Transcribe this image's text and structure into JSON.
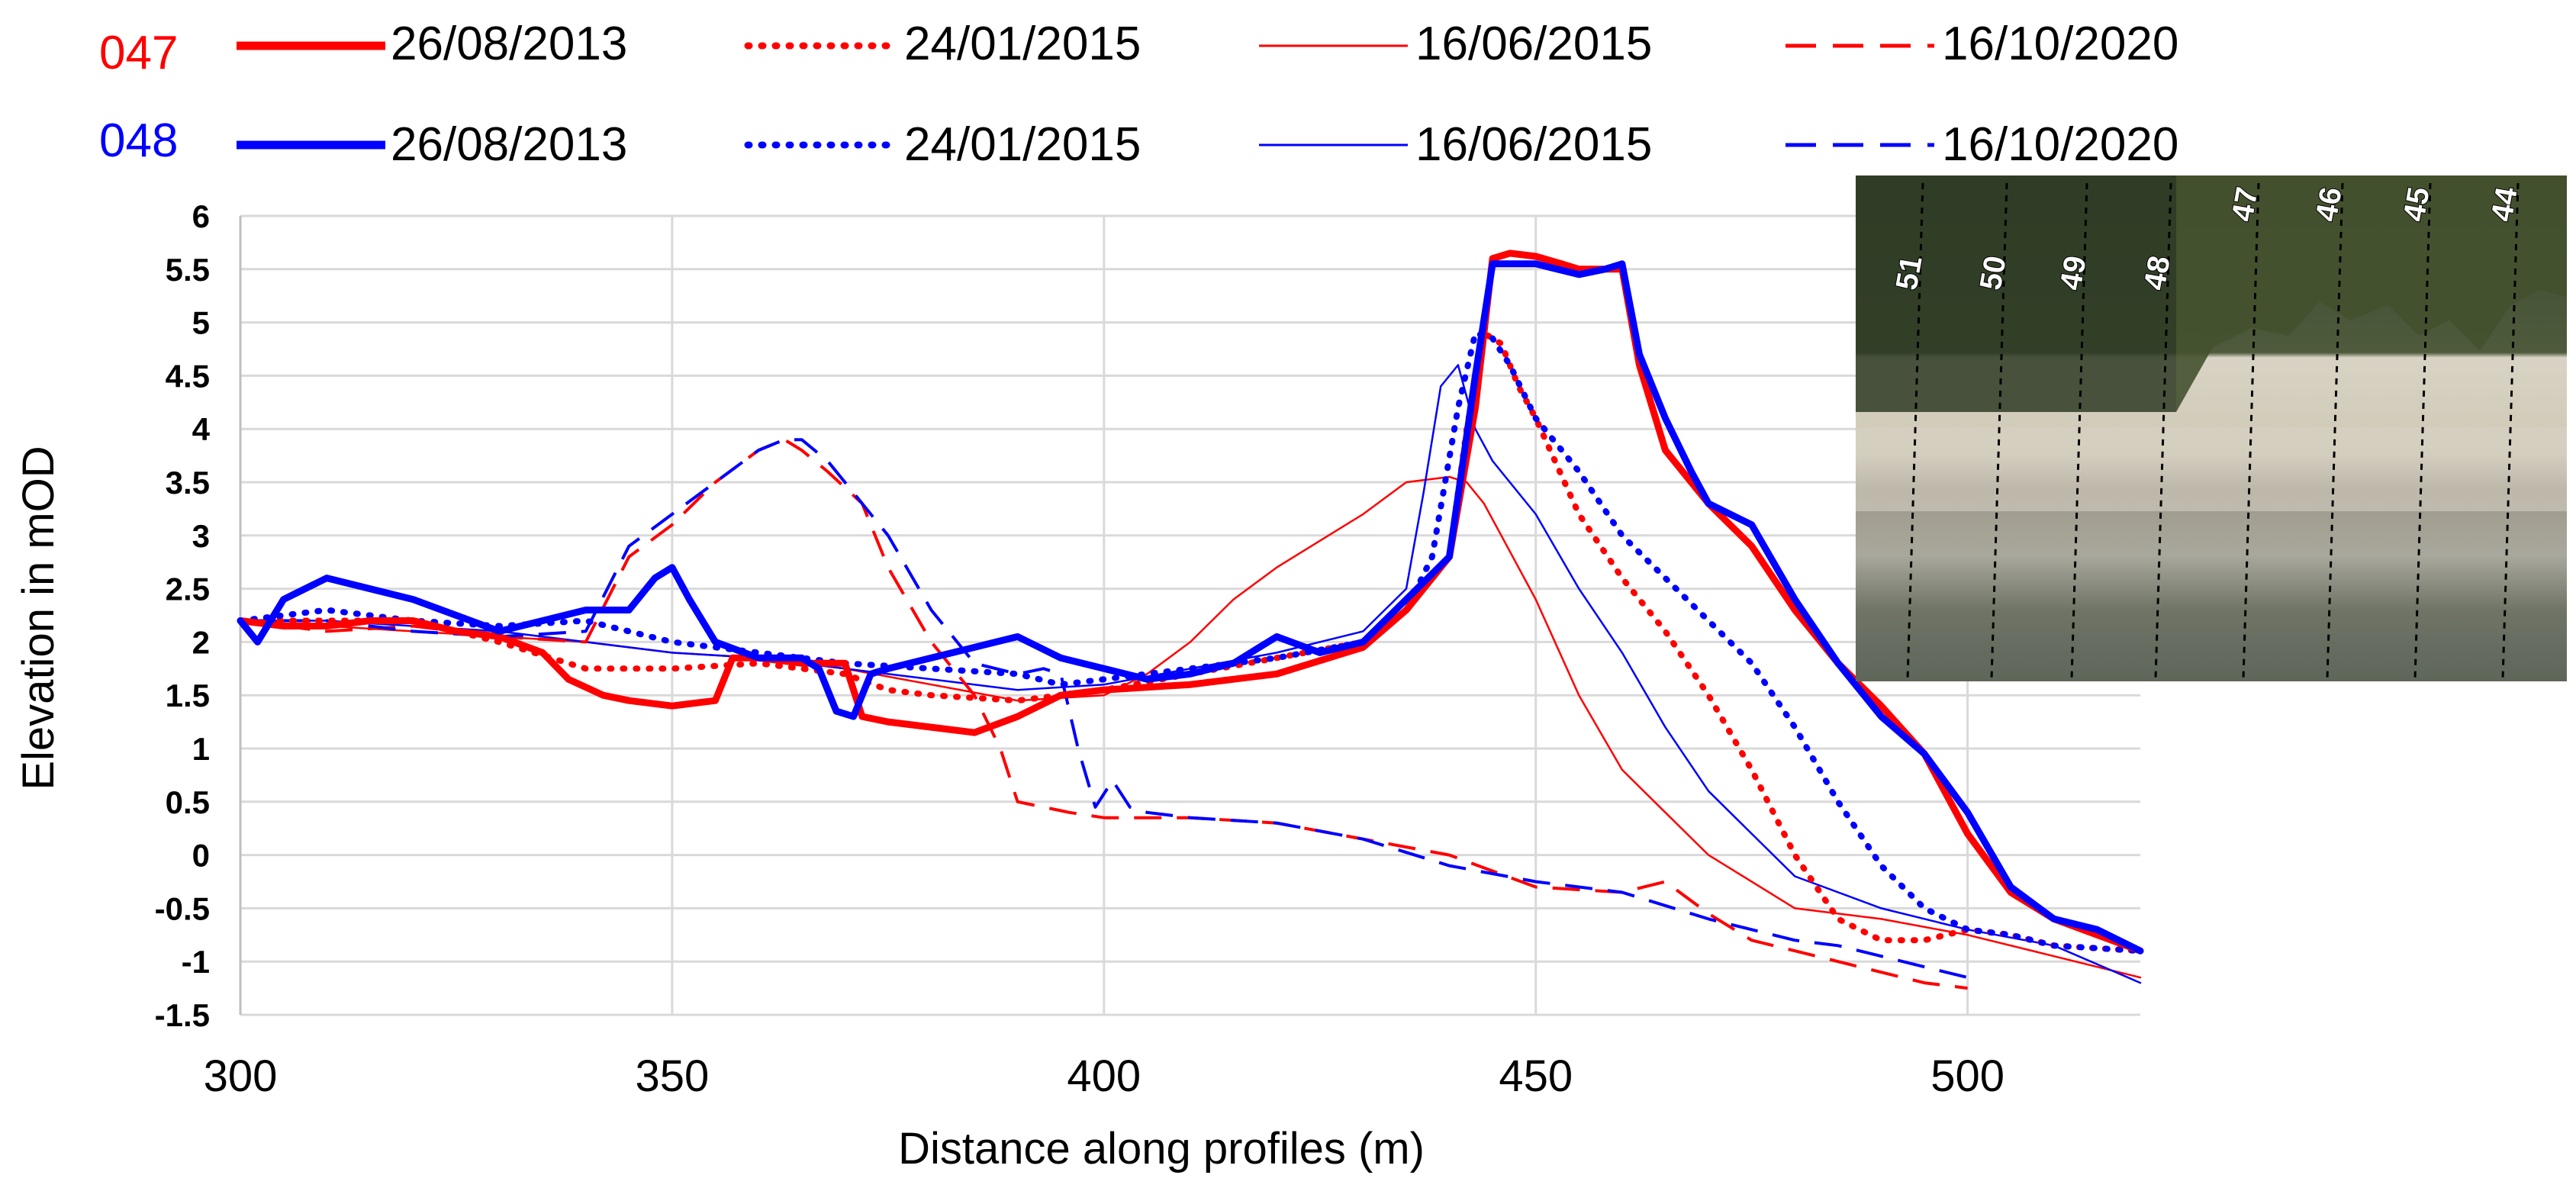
{
  "chart_data": {
    "type": "line",
    "title": "",
    "xlabel": "Distance along profiles (m)",
    "ylabel": "Elevation in mOD",
    "xlim": [
      300,
      520
    ],
    "ylim": [
      -1.5,
      6
    ],
    "x_ticks": [
      300,
      350,
      400,
      450,
      500
    ],
    "y_ticks": [
      6,
      5.5,
      5,
      4.5,
      4,
      3.5,
      3,
      2.5,
      2,
      1.5,
      1,
      0.5,
      0,
      -0.5,
      -1,
      -1.5
    ],
    "x_tick_labels": [
      "300",
      "350",
      "400",
      "450",
      "500"
    ],
    "y_tick_labels": [
      "6",
      "5.5",
      "5",
      "4.5",
      "4",
      "3.5",
      "3",
      "2.5",
      "2",
      "1.5",
      "1",
      "0.5",
      "0",
      "-0.5",
      "-1",
      "-1.5"
    ],
    "grid": true,
    "legend": {
      "position": "top",
      "groups": [
        {
          "label": "047",
          "color": "#ff0000"
        },
        {
          "label": "048",
          "color": "#0000ff"
        }
      ],
      "entries": [
        {
          "date": "26/08/2013",
          "style": "thick"
        },
        {
          "date": "24/01/2015",
          "style": "dotted"
        },
        {
          "date": "16/06/2015",
          "style": "thin"
        },
        {
          "date": "16/10/2020",
          "style": "dashed"
        }
      ]
    },
    "series": [
      {
        "name": "047 26/08/2013",
        "color": "#ff0000",
        "style": "thick",
        "x": [
          300,
          305,
          310,
          315,
          320,
          325,
          330,
          335,
          338,
          342,
          345,
          350,
          355,
          357,
          360,
          365,
          370,
          372,
          375,
          380,
          385,
          390,
          395,
          400,
          410,
          420,
          430,
          435,
          440,
          443,
          445,
          447,
          450,
          453,
          455,
          458,
          460,
          462,
          465,
          470,
          475,
          480,
          485,
          490,
          495,
          500,
          505,
          510,
          515,
          520
        ],
        "y": [
          2.2,
          2.15,
          2.15,
          2.2,
          2.2,
          2.1,
          2.05,
          1.9,
          1.65,
          1.5,
          1.45,
          1.4,
          1.45,
          1.85,
          1.85,
          1.8,
          1.8,
          1.3,
          1.25,
          1.2,
          1.15,
          1.3,
          1.5,
          1.55,
          1.6,
          1.7,
          1.95,
          2.3,
          2.8,
          4.2,
          5.6,
          5.65,
          5.62,
          5.55,
          5.5,
          5.5,
          5.5,
          4.6,
          3.8,
          3.3,
          2.9,
          2.3,
          1.8,
          1.4,
          0.95,
          0.2,
          -0.35,
          -0.6,
          -0.75,
          -0.9
        ]
      },
      {
        "name": "047 24/01/2015",
        "color": "#ff0000",
        "style": "dotted",
        "x": [
          300,
          310,
          320,
          330,
          340,
          345,
          350,
          360,
          370,
          375,
          380,
          390,
          400,
          410,
          420,
          430,
          435,
          440,
          442,
          444,
          446,
          448,
          450,
          455,
          460,
          465,
          470,
          475,
          480,
          485,
          490,
          495,
          500,
          505,
          510,
          520
        ],
        "y": [
          2.2,
          2.2,
          2.2,
          2.0,
          1.75,
          1.75,
          1.75,
          1.8,
          1.7,
          1.55,
          1.5,
          1.45,
          1.55,
          1.7,
          1.85,
          2.0,
          2.3,
          2.8,
          4.0,
          4.9,
          4.8,
          4.4,
          4.1,
          3.2,
          2.6,
          2.1,
          1.5,
          0.8,
          0.0,
          -0.6,
          -0.8,
          -0.8,
          -0.7,
          -0.75,
          -0.85,
          -0.9
        ]
      },
      {
        "name": "047 16/06/2015",
        "color": "#ff0000",
        "style": "thin",
        "x": [
          300,
          310,
          320,
          330,
          340,
          350,
          360,
          370,
          380,
          390,
          400,
          405,
          410,
          415,
          420,
          430,
          435,
          440,
          442,
          444,
          446,
          450,
          455,
          460,
          465,
          470,
          480,
          490,
          500,
          510,
          520
        ],
        "y": [
          2.2,
          2.15,
          2.1,
          2.05,
          2.0,
          1.9,
          1.85,
          1.75,
          1.6,
          1.45,
          1.5,
          1.7,
          2.0,
          2.4,
          2.7,
          3.2,
          3.5,
          3.55,
          3.5,
          3.3,
          3.0,
          2.4,
          1.5,
          0.8,
          0.4,
          0.0,
          -0.5,
          -0.6,
          -0.75,
          -0.95,
          -1.15
        ]
      },
      {
        "name": "047 16/10/2020",
        "color": "#ff0000",
        "style": "dashed",
        "x": [
          300,
          310,
          320,
          330,
          340,
          345,
          350,
          355,
          360,
          363,
          365,
          368,
          372,
          375,
          380,
          385,
          388,
          390,
          393,
          396,
          400,
          410,
          420,
          430,
          440,
          450,
          460,
          465,
          470,
          475,
          480,
          485,
          490,
          495,
          500
        ],
        "y": [
          2.2,
          2.1,
          2.15,
          2.05,
          2.0,
          2.8,
          3.1,
          3.5,
          3.8,
          3.9,
          3.8,
          3.6,
          3.3,
          2.7,
          2.0,
          1.5,
          1.0,
          0.5,
          0.45,
          0.4,
          0.35,
          0.35,
          0.3,
          0.15,
          0.0,
          -0.3,
          -0.35,
          -0.25,
          -0.55,
          -0.8,
          -0.9,
          -1.0,
          -1.1,
          -1.2,
          -1.25
        ]
      },
      {
        "name": "048 26/08/2013",
        "color": "#0000ff",
        "style": "thick",
        "x": [
          300,
          302,
          305,
          310,
          315,
          320,
          325,
          330,
          335,
          340,
          345,
          348,
          350,
          352,
          355,
          360,
          365,
          367,
          369,
          371,
          373,
          375,
          380,
          385,
          390,
          395,
          400,
          405,
          410,
          415,
          420,
          425,
          430,
          435,
          440,
          443,
          445,
          448,
          450,
          455,
          458,
          460,
          462,
          465,
          468,
          470,
          475,
          480,
          485,
          490,
          495,
          500,
          505,
          510,
          515,
          520
        ],
        "y": [
          2.2,
          2.0,
          2.4,
          2.6,
          2.5,
          2.4,
          2.25,
          2.1,
          2.2,
          2.3,
          2.3,
          2.6,
          2.7,
          2.4,
          2.0,
          1.85,
          1.85,
          1.75,
          1.35,
          1.3,
          1.7,
          1.75,
          1.85,
          1.95,
          2.05,
          1.85,
          1.75,
          1.65,
          1.7,
          1.8,
          2.05,
          1.9,
          2.0,
          2.4,
          2.8,
          4.5,
          5.55,
          5.55,
          5.55,
          5.45,
          5.5,
          5.55,
          4.7,
          4.1,
          3.6,
          3.3,
          3.1,
          2.4,
          1.8,
          1.3,
          0.95,
          0.4,
          -0.3,
          -0.6,
          -0.7,
          -0.9
        ]
      },
      {
        "name": "048 24/01/2015",
        "color": "#0000ff",
        "style": "dotted",
        "x": [
          300,
          310,
          320,
          330,
          340,
          350,
          360,
          370,
          380,
          390,
          395,
          400,
          410,
          420,
          430,
          435,
          438,
          441,
          443,
          445,
          447,
          450,
          455,
          460,
          465,
          470,
          475,
          480,
          485,
          490,
          495,
          500,
          505,
          510,
          520
        ],
        "y": [
          2.2,
          2.3,
          2.2,
          2.15,
          2.2,
          2.0,
          1.9,
          1.8,
          1.75,
          1.7,
          1.6,
          1.65,
          1.75,
          1.85,
          2.0,
          2.3,
          2.8,
          4.2,
          4.9,
          4.85,
          4.6,
          4.1,
          3.6,
          3.0,
          2.6,
          2.2,
          1.8,
          1.2,
          0.5,
          -0.1,
          -0.5,
          -0.7,
          -0.75,
          -0.85,
          -0.9
        ]
      },
      {
        "name": "048 16/06/2015",
        "color": "#0000ff",
        "style": "thin",
        "x": [
          300,
          310,
          320,
          330,
          340,
          350,
          360,
          370,
          380,
          390,
          400,
          410,
          420,
          430,
          435,
          437,
          439,
          441,
          443,
          445,
          450,
          455,
          460,
          465,
          470,
          480,
          490,
          500,
          510,
          520
        ],
        "y": [
          2.2,
          2.2,
          2.15,
          2.1,
          2.0,
          1.9,
          1.85,
          1.75,
          1.65,
          1.55,
          1.6,
          1.75,
          1.9,
          2.1,
          2.5,
          3.4,
          4.4,
          4.6,
          4.0,
          3.7,
          3.2,
          2.5,
          1.9,
          1.2,
          0.6,
          -0.2,
          -0.5,
          -0.7,
          -0.85,
          -1.2
        ]
      },
      {
        "name": "048 16/10/2020",
        "color": "#0000ff",
        "style": "dashed",
        "x": [
          300,
          310,
          320,
          330,
          340,
          345,
          350,
          355,
          360,
          363,
          365,
          368,
          370,
          372,
          375,
          380,
          385,
          390,
          393,
          395,
          397,
          399,
          401,
          403,
          405,
          410,
          420,
          430,
          440,
          450,
          460,
          470,
          480,
          485,
          490,
          495,
          500
        ],
        "y": [
          2.2,
          2.2,
          2.1,
          2.05,
          2.1,
          2.9,
          3.2,
          3.5,
          3.8,
          3.9,
          3.9,
          3.7,
          3.5,
          3.3,
          3.0,
          2.3,
          1.8,
          1.7,
          1.75,
          1.7,
          1.0,
          0.45,
          0.7,
          0.45,
          0.4,
          0.35,
          0.3,
          0.15,
          -0.1,
          -0.25,
          -0.35,
          -0.6,
          -0.8,
          -0.85,
          -0.95,
          -1.05,
          -1.15
        ]
      }
    ],
    "inset": {
      "description": "aerial-photo",
      "profile_labels": [
        "51",
        "50",
        "49",
        "48",
        "47",
        "46",
        "45",
        "44"
      ]
    }
  }
}
